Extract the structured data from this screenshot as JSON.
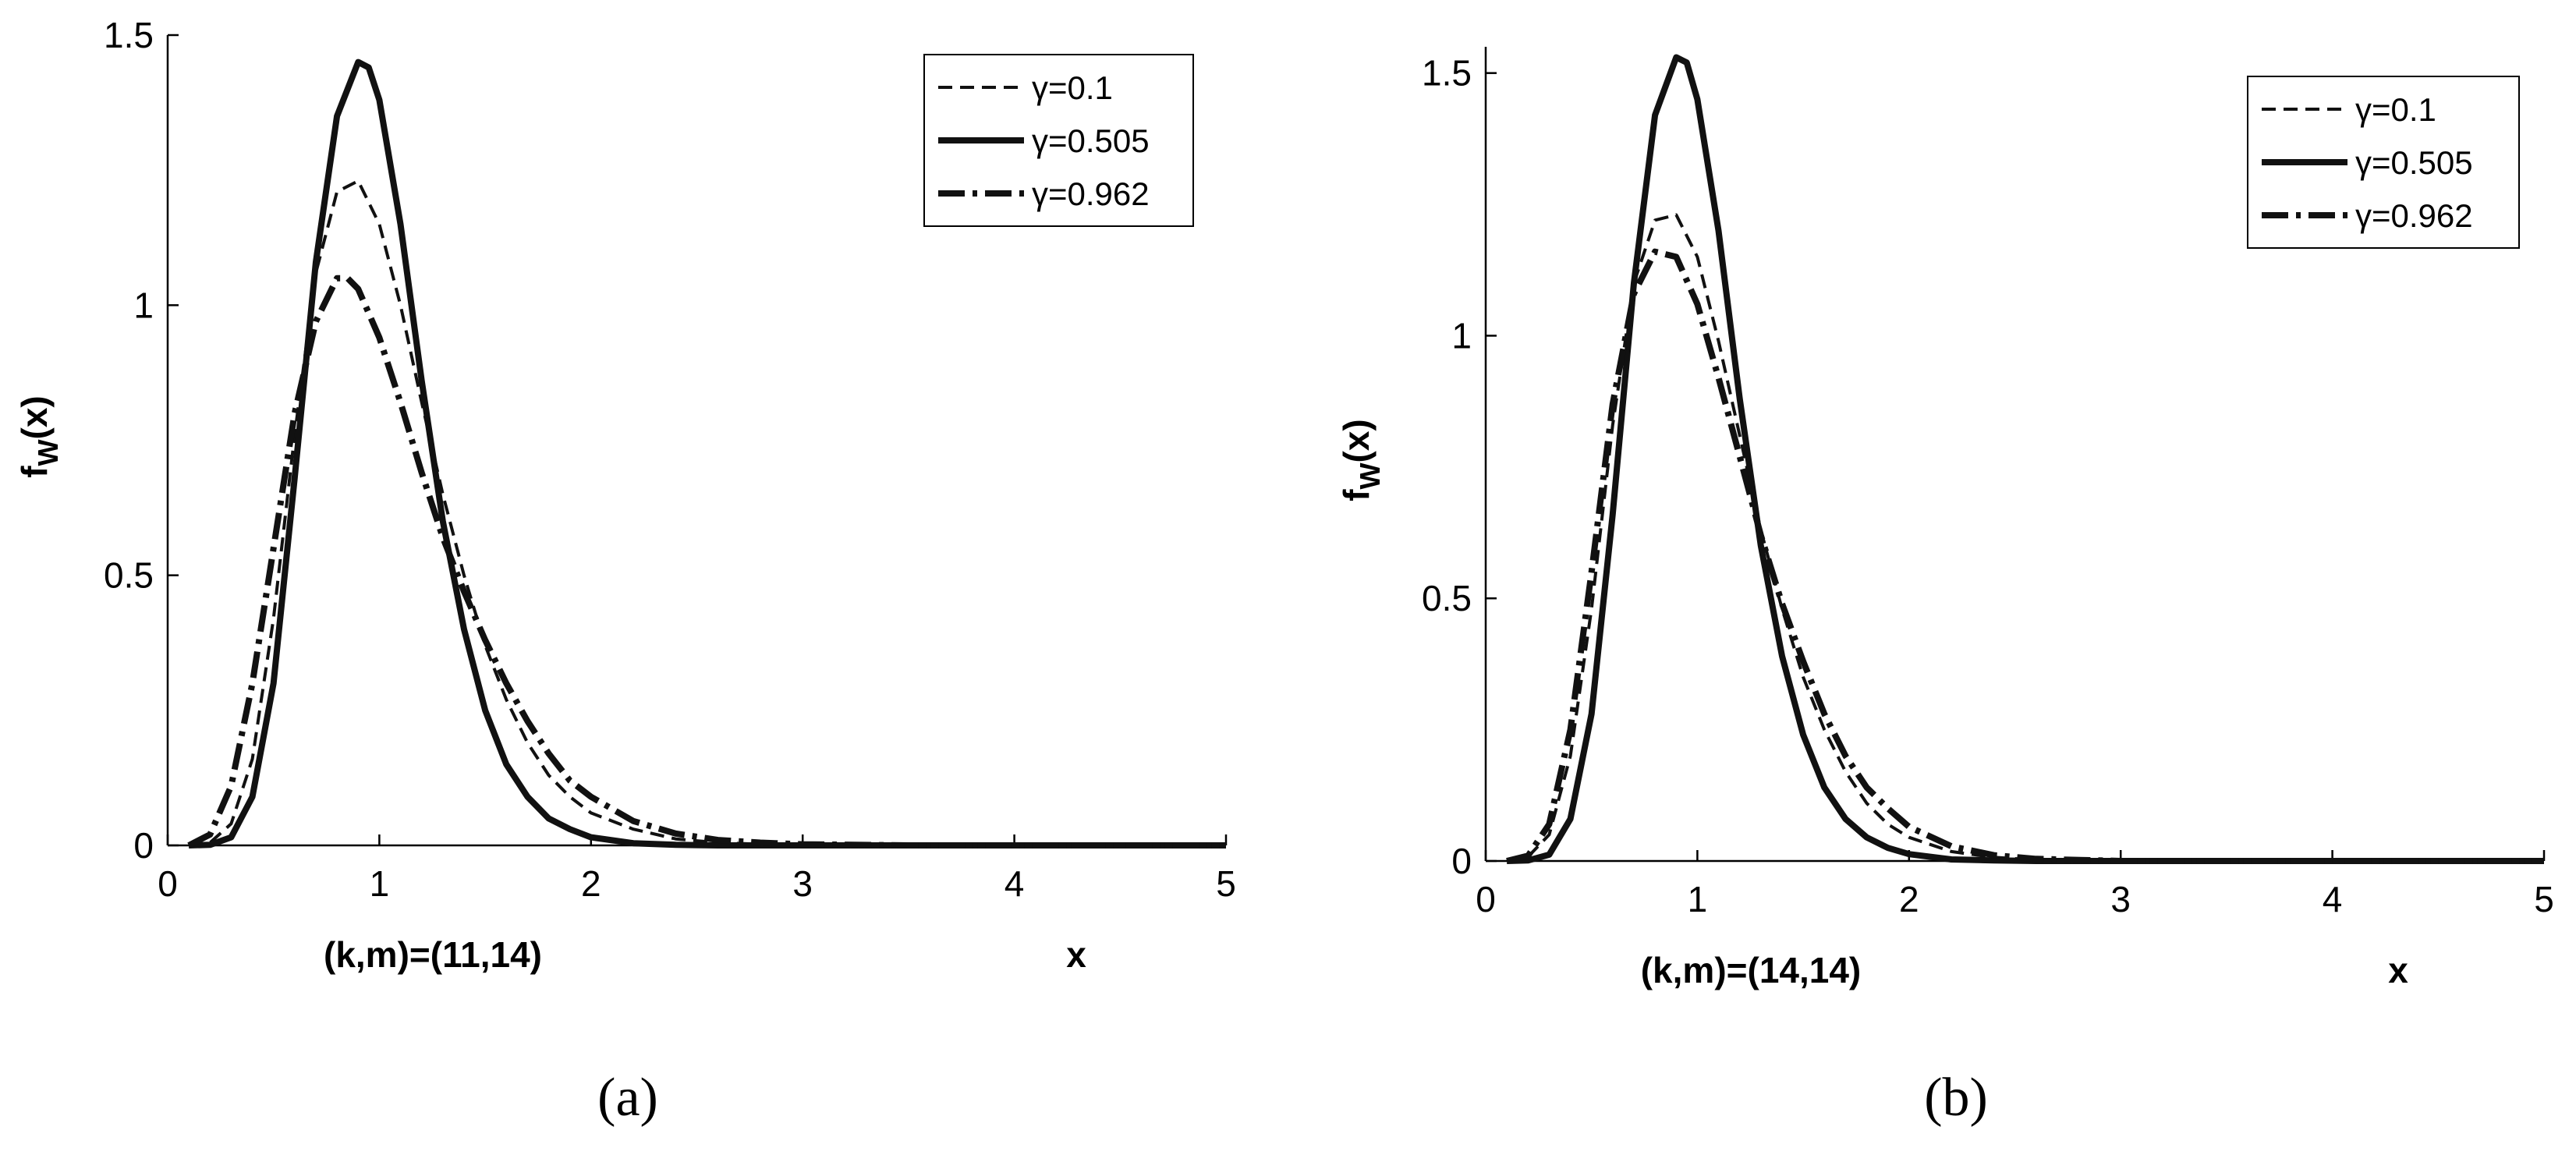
{
  "chart_data": [
    {
      "type": "line",
      "panel_label": "(a)",
      "xlabel": "x",
      "xlabel_note": "(k,m)=(11,14)",
      "ylabel_main": "f",
      "ylabel_sub": "W",
      "ylabel_tail": "(x)",
      "xlim": [
        0,
        5
      ],
      "ylim": [
        0,
        1.5
      ],
      "x_ticks": [
        0,
        1,
        2,
        3,
        4,
        5
      ],
      "y_ticks": [
        0,
        0.5,
        1,
        1.5
      ],
      "legend_position": "top-right",
      "grid": false,
      "series": [
        {
          "name": "γ=0.1",
          "style": "dashed",
          "x": [
            0.1,
            0.2,
            0.3,
            0.4,
            0.5,
            0.6,
            0.7,
            0.8,
            0.9,
            1.0,
            1.1,
            1.2,
            1.3,
            1.4,
            1.5,
            1.6,
            1.7,
            1.8,
            1.9,
            2.0,
            2.2,
            2.4,
            2.6,
            2.8,
            3.0,
            3.5,
            4.0,
            5.0
          ],
          "y": [
            0.0,
            0.005,
            0.04,
            0.16,
            0.42,
            0.76,
            1.06,
            1.21,
            1.23,
            1.15,
            1.0,
            0.82,
            0.65,
            0.5,
            0.37,
            0.27,
            0.19,
            0.13,
            0.09,
            0.06,
            0.03,
            0.012,
            0.005,
            0.002,
            0.0,
            0.0,
            0.0,
            0.0
          ]
        },
        {
          "name": "γ=0.505",
          "style": "solid",
          "x": [
            0.1,
            0.2,
            0.3,
            0.4,
            0.5,
            0.6,
            0.7,
            0.8,
            0.9,
            0.95,
            1.0,
            1.1,
            1.2,
            1.3,
            1.4,
            1.5,
            1.6,
            1.7,
            1.8,
            1.9,
            2.0,
            2.2,
            2.4,
            2.6,
            3.0,
            4.0,
            5.0
          ],
          "y": [
            0.0,
            0.001,
            0.015,
            0.09,
            0.3,
            0.68,
            1.08,
            1.35,
            1.45,
            1.44,
            1.38,
            1.15,
            0.86,
            0.6,
            0.4,
            0.25,
            0.15,
            0.09,
            0.05,
            0.03,
            0.015,
            0.004,
            0.001,
            0.0,
            0.0,
            0.0,
            0.0
          ]
        },
        {
          "name": "γ=0.962",
          "style": "dashdot",
          "x": [
            0.1,
            0.2,
            0.3,
            0.4,
            0.5,
            0.6,
            0.7,
            0.8,
            0.85,
            0.9,
            1.0,
            1.1,
            1.2,
            1.3,
            1.4,
            1.5,
            1.6,
            1.7,
            1.8,
            1.9,
            2.0,
            2.2,
            2.4,
            2.6,
            2.8,
            3.0,
            3.5,
            4.0,
            5.0
          ],
          "y": [
            0.0,
            0.02,
            0.11,
            0.3,
            0.55,
            0.8,
            0.97,
            1.05,
            1.05,
            1.03,
            0.94,
            0.82,
            0.69,
            0.57,
            0.47,
            0.38,
            0.3,
            0.23,
            0.17,
            0.12,
            0.09,
            0.045,
            0.022,
            0.01,
            0.005,
            0.002,
            0.0,
            0.0,
            0.0
          ]
        }
      ]
    },
    {
      "type": "line",
      "panel_label": "(b)",
      "xlabel": "x",
      "xlabel_note": "(k,m)=(14,14)",
      "ylabel_main": "f",
      "ylabel_sub": "W",
      "ylabel_tail": "(x)",
      "xlim": [
        0,
        5
      ],
      "ylim": [
        0,
        1.55
      ],
      "x_ticks": [
        0,
        1,
        2,
        3,
        4,
        5
      ],
      "y_ticks": [
        0,
        0.5,
        1,
        1.5
      ],
      "legend_position": "top-right",
      "grid": false,
      "series": [
        {
          "name": "γ=0.1",
          "style": "dashed",
          "x": [
            0.1,
            0.2,
            0.3,
            0.4,
            0.5,
            0.6,
            0.7,
            0.8,
            0.9,
            1.0,
            1.1,
            1.2,
            1.3,
            1.4,
            1.5,
            1.6,
            1.7,
            1.8,
            1.9,
            2.0,
            2.2,
            2.4,
            2.6,
            3.0,
            4.0,
            5.0
          ],
          "y": [
            0.0,
            0.008,
            0.05,
            0.2,
            0.48,
            0.83,
            1.1,
            1.22,
            1.23,
            1.15,
            0.99,
            0.81,
            0.63,
            0.48,
            0.35,
            0.25,
            0.17,
            0.11,
            0.07,
            0.045,
            0.018,
            0.007,
            0.002,
            0.0,
            0.0,
            0.0
          ]
        },
        {
          "name": "γ=0.505",
          "style": "solid",
          "x": [
            0.1,
            0.2,
            0.3,
            0.4,
            0.5,
            0.6,
            0.7,
            0.8,
            0.9,
            0.95,
            1.0,
            1.1,
            1.2,
            1.3,
            1.4,
            1.5,
            1.6,
            1.7,
            1.8,
            1.9,
            2.0,
            2.2,
            2.4,
            2.6,
            3.0,
            4.0,
            5.0
          ],
          "y": [
            0.0,
            0.001,
            0.012,
            0.08,
            0.28,
            0.66,
            1.1,
            1.42,
            1.53,
            1.52,
            1.45,
            1.2,
            0.88,
            0.6,
            0.39,
            0.24,
            0.14,
            0.08,
            0.045,
            0.025,
            0.013,
            0.003,
            0.001,
            0.0,
            0.0,
            0.0,
            0.0
          ]
        },
        {
          "name": "γ=0.962",
          "style": "dashdot",
          "x": [
            0.1,
            0.2,
            0.3,
            0.4,
            0.5,
            0.6,
            0.7,
            0.8,
            0.9,
            1.0,
            1.1,
            1.2,
            1.3,
            1.4,
            1.5,
            1.6,
            1.7,
            1.8,
            1.9,
            2.0,
            2.2,
            2.4,
            2.6,
            3.0,
            4.0,
            5.0
          ],
          "y": [
            0.0,
            0.01,
            0.07,
            0.25,
            0.55,
            0.87,
            1.08,
            1.16,
            1.15,
            1.06,
            0.92,
            0.77,
            0.62,
            0.49,
            0.38,
            0.28,
            0.2,
            0.14,
            0.1,
            0.065,
            0.028,
            0.011,
            0.004,
            0.0,
            0.0,
            0.0
          ]
        }
      ]
    }
  ]
}
